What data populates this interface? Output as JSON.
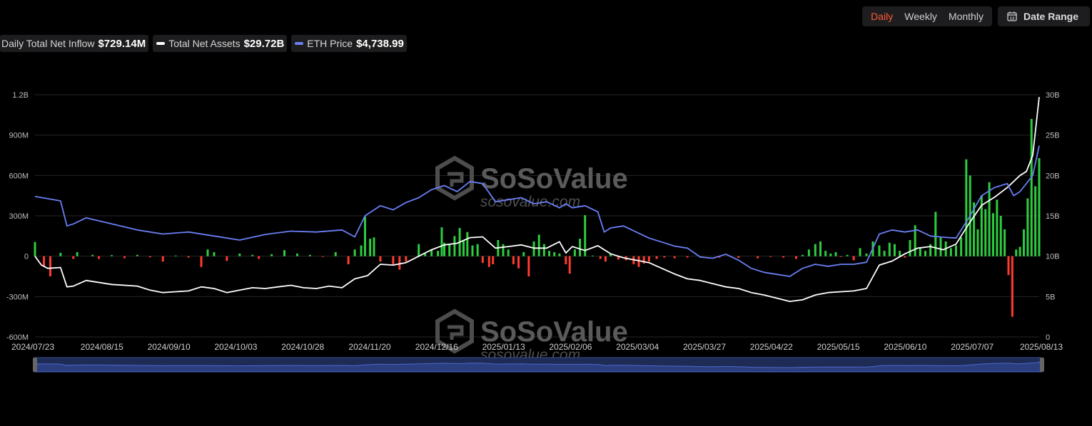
{
  "toolbar": {
    "periods": [
      {
        "label": "Daily",
        "active": true
      },
      {
        "label": "Weekly",
        "active": false
      },
      {
        "label": "Monthly",
        "active": false
      }
    ],
    "date_range_label": "Date Range",
    "date_range_icon": "calendar-icon"
  },
  "legend": [
    {
      "name": "Daily Total Net Inflow",
      "value": "$729.14M",
      "color": "#2ecc40"
    },
    {
      "name": "Total Net Assets",
      "value": "$29.72B",
      "color": "#ffffff"
    },
    {
      "name": "ETH Price",
      "value": "$4,738.99",
      "color": "#6a7ff5"
    }
  ],
  "watermark": {
    "brand": "SoSoValue",
    "site": "sosovalue.com"
  },
  "colors": {
    "inflow_positive": "#2ecc40",
    "inflow_negative": "#ff3b30",
    "assets_line": "#ffffff",
    "price_line": "#6a7ff5",
    "grid": "#262626"
  },
  "chart_data": {
    "type": "bar",
    "title": "",
    "xlabel": "",
    "ylabel": "",
    "left_axis": {
      "ticks": [
        "1.2B",
        "900M",
        "600M",
        "300M",
        "0",
        "-300M",
        "-600M"
      ],
      "range": [
        -600,
        1200
      ],
      "unit": "M"
    },
    "right_axis": {
      "ticks": [
        "30B",
        "25B",
        "20B",
        "15B",
        "10B",
        "5B",
        "0"
      ],
      "range": [
        0,
        30
      ],
      "unit": "B"
    },
    "x_tick_labels": [
      "2024/07/23",
      "2024/08/15",
      "2024/09/10",
      "2024/10/03",
      "2024/10/28",
      "2024/11/20",
      "2024/12/16",
      "2025/01/13",
      "2025/02/06",
      "2025/03/04",
      "2025/03/27",
      "2025/04/22",
      "2025/05/15",
      "2025/06/10",
      "2025/07/07",
      "2025/08/13"
    ],
    "grid": true,
    "legend_position": "top-left",
    "series": [
      {
        "name": "Daily Total Net Inflow",
        "type": "bar",
        "axis": "left",
        "unit": "M",
        "points": [
          [
            0,
            106
          ],
          [
            7,
            -75
          ],
          [
            12,
            -150
          ],
          [
            20,
            25
          ],
          [
            30,
            -20
          ],
          [
            33,
            30
          ],
          [
            45,
            10
          ],
          [
            50,
            -20
          ],
          [
            60,
            8
          ],
          [
            70,
            -15
          ],
          [
            80,
            10
          ],
          [
            90,
            -8
          ],
          [
            100,
            -40
          ],
          [
            110,
            5
          ],
          [
            120,
            -10
          ],
          [
            130,
            -80
          ],
          [
            135,
            50
          ],
          [
            140,
            30
          ],
          [
            150,
            -35
          ],
          [
            160,
            20
          ],
          [
            170,
            10
          ],
          [
            175,
            -20
          ],
          [
            185,
            15
          ],
          [
            195,
            45
          ],
          [
            205,
            20
          ],
          [
            215,
            10
          ],
          [
            225,
            -5
          ],
          [
            235,
            30
          ],
          [
            245,
            -60
          ],
          [
            250,
            50
          ],
          [
            255,
            80
          ],
          [
            258,
            295
          ],
          [
            262,
            130
          ],
          [
            265,
            140
          ],
          [
            270,
            -40
          ],
          [
            280,
            -60
          ],
          [
            285,
            -100
          ],
          [
            290,
            -40
          ],
          [
            300,
            90
          ],
          [
            305,
            20
          ],
          [
            310,
            50
          ],
          [
            315,
            40
          ],
          [
            318,
            215
          ],
          [
            320,
            100
          ],
          [
            324,
            90
          ],
          [
            328,
            150
          ],
          [
            332,
            210
          ],
          [
            335,
            120
          ],
          [
            338,
            180
          ],
          [
            342,
            80
          ],
          [
            346,
            90
          ],
          [
            350,
            -50
          ],
          [
            355,
            -80
          ],
          [
            358,
            -60
          ],
          [
            362,
            120
          ],
          [
            366,
            90
          ],
          [
            370,
            50
          ],
          [
            374,
            -60
          ],
          [
            378,
            -90
          ],
          [
            382,
            30
          ],
          [
            386,
            -150
          ],
          [
            390,
            110
          ],
          [
            394,
            160
          ],
          [
            398,
            90
          ],
          [
            402,
            40
          ],
          [
            406,
            30
          ],
          [
            410,
            20
          ],
          [
            415,
            -60
          ],
          [
            418,
            -130
          ],
          [
            422,
            50
          ],
          [
            426,
            130
          ],
          [
            430,
            305
          ],
          [
            436,
            5
          ],
          [
            442,
            -20
          ],
          [
            446,
            -40
          ],
          [
            450,
            20
          ],
          [
            456,
            -25
          ],
          [
            462,
            -30
          ],
          [
            468,
            -60
          ],
          [
            472,
            -80
          ],
          [
            476,
            -55
          ],
          [
            480,
            -40
          ],
          [
            486,
            -20
          ],
          [
            492,
            -10
          ],
          [
            500,
            -15
          ],
          [
            510,
            -10
          ],
          [
            520,
            -8
          ],
          [
            535,
            -10
          ],
          [
            550,
            -12
          ],
          [
            565,
            -15
          ],
          [
            575,
            -5
          ],
          [
            585,
            -10
          ],
          [
            595,
            -20
          ],
          [
            600,
            10
          ],
          [
            605,
            50
          ],
          [
            610,
            90
          ],
          [
            614,
            110
          ],
          [
            618,
            40
          ],
          [
            622,
            20
          ],
          [
            626,
            30
          ],
          [
            630,
            -5
          ],
          [
            635,
            10
          ],
          [
            640,
            -30
          ],
          [
            645,
            60
          ],
          [
            650,
            20
          ],
          [
            655,
            110
          ],
          [
            660,
            80
          ],
          [
            664,
            40
          ],
          [
            668,
            100
          ],
          [
            672,
            90
          ],
          [
            676,
            40
          ],
          [
            680,
            -10
          ],
          [
            684,
            120
          ],
          [
            688,
            230
          ],
          [
            692,
            60
          ],
          [
            696,
            40
          ],
          [
            700,
            90
          ],
          [
            704,
            330
          ],
          [
            708,
            140
          ],
          [
            712,
            110
          ],
          [
            716,
            60
          ],
          [
            720,
            80
          ],
          [
            724,
            140
          ],
          [
            728,
            720
          ],
          [
            731,
            600
          ],
          [
            734,
            400
          ],
          [
            737,
            200
          ],
          [
            740,
            450
          ],
          [
            743,
            350
          ],
          [
            746,
            550
          ],
          [
            749,
            320
          ],
          [
            752,
            420
          ],
          [
            755,
            300
          ],
          [
            758,
            200
          ],
          [
            761,
            -140
          ],
          [
            764,
            -450
          ],
          [
            767,
            50
          ],
          [
            770,
            70
          ],
          [
            773,
            200
          ],
          [
            776,
            430
          ],
          [
            779,
            1020
          ],
          [
            782,
            520
          ],
          [
            785,
            729
          ]
        ]
      },
      {
        "name": "Total Net Assets",
        "type": "line",
        "axis": "right",
        "unit": "B",
        "points": [
          [
            0,
            10
          ],
          [
            5,
            8.9
          ],
          [
            10,
            8.5
          ],
          [
            20,
            8.6
          ],
          [
            25,
            6.2
          ],
          [
            30,
            6.3
          ],
          [
            40,
            7
          ],
          [
            60,
            6.5
          ],
          [
            80,
            6.3
          ],
          [
            90,
            5.8
          ],
          [
            100,
            5.5
          ],
          [
            110,
            5.6
          ],
          [
            120,
            5.7
          ],
          [
            130,
            6.2
          ],
          [
            140,
            6
          ],
          [
            150,
            5.5
          ],
          [
            160,
            5.8
          ],
          [
            170,
            6.1
          ],
          [
            180,
            6.0
          ],
          [
            190,
            6.2
          ],
          [
            200,
            6.4
          ],
          [
            210,
            6.1
          ],
          [
            220,
            6.0
          ],
          [
            230,
            6.3
          ],
          [
            240,
            6.1
          ],
          [
            250,
            7.2
          ],
          [
            260,
            7.6
          ],
          [
            270,
            9.0
          ],
          [
            280,
            8.9
          ],
          [
            290,
            9.2
          ],
          [
            300,
            10.0
          ],
          [
            310,
            10.8
          ],
          [
            320,
            11.4
          ],
          [
            330,
            11.6
          ],
          [
            340,
            12.3
          ],
          [
            350,
            12.4
          ],
          [
            360,
            11.0
          ],
          [
            370,
            11.2
          ],
          [
            380,
            11.4
          ],
          [
            390,
            11.0
          ],
          [
            400,
            11.0
          ],
          [
            410,
            11.8
          ],
          [
            415,
            10.4
          ],
          [
            420,
            11.2
          ],
          [
            430,
            10.7
          ],
          [
            440,
            11.3
          ],
          [
            450,
            10.3
          ],
          [
            460,
            9.8
          ],
          [
            470,
            9.5
          ],
          [
            480,
            9.2
          ],
          [
            490,
            8.5
          ],
          [
            500,
            7.8
          ],
          [
            510,
            7.2
          ],
          [
            520,
            7.0
          ],
          [
            530,
            6.6
          ],
          [
            540,
            6.2
          ],
          [
            550,
            6.0
          ],
          [
            560,
            5.5
          ],
          [
            570,
            5.2
          ],
          [
            580,
            4.8
          ],
          [
            590,
            4.4
          ],
          [
            600,
            4.6
          ],
          [
            610,
            5.2
          ],
          [
            620,
            5.5
          ],
          [
            630,
            5.6
          ],
          [
            640,
            5.7
          ],
          [
            650,
            6.0
          ],
          [
            660,
            8.9
          ],
          [
            670,
            9.4
          ],
          [
            680,
            10.3
          ],
          [
            690,
            11.0
          ],
          [
            700,
            11.2
          ],
          [
            710,
            10.8
          ],
          [
            720,
            11.5
          ],
          [
            730,
            14.0
          ],
          [
            740,
            16.3
          ],
          [
            750,
            17.3
          ],
          [
            760,
            18.5
          ],
          [
            770,
            20.0
          ],
          [
            775,
            20.5
          ],
          [
            780,
            22.5
          ],
          [
            785,
            29.72
          ]
        ]
      },
      {
        "name": "ETH Price",
        "type": "line",
        "axis": "right",
        "unit": "USD",
        "points": [
          [
            0,
            3480
          ],
          [
            20,
            3370
          ],
          [
            25,
            2750
          ],
          [
            30,
            2800
          ],
          [
            40,
            2950
          ],
          [
            60,
            2800
          ],
          [
            80,
            2650
          ],
          [
            100,
            2550
          ],
          [
            120,
            2600
          ],
          [
            140,
            2500
          ],
          [
            160,
            2400
          ],
          [
            180,
            2540
          ],
          [
            200,
            2620
          ],
          [
            220,
            2600
          ],
          [
            240,
            2650
          ],
          [
            250,
            2480
          ],
          [
            258,
            3000
          ],
          [
            270,
            3250
          ],
          [
            280,
            3150
          ],
          [
            290,
            3330
          ],
          [
            300,
            3450
          ],
          [
            310,
            3650
          ],
          [
            320,
            3750
          ],
          [
            330,
            3600
          ],
          [
            340,
            3850
          ],
          [
            350,
            3800
          ],
          [
            360,
            3350
          ],
          [
            370,
            3400
          ],
          [
            380,
            3450
          ],
          [
            390,
            3300
          ],
          [
            400,
            3350
          ],
          [
            410,
            3200
          ],
          [
            415,
            3300
          ],
          [
            420,
            3200
          ],
          [
            430,
            3250
          ],
          [
            440,
            3100
          ],
          [
            445,
            2600
          ],
          [
            450,
            2700
          ],
          [
            460,
            2750
          ],
          [
            470,
            2600
          ],
          [
            480,
            2450
          ],
          [
            490,
            2350
          ],
          [
            500,
            2250
          ],
          [
            510,
            2200
          ],
          [
            520,
            1980
          ],
          [
            530,
            1950
          ],
          [
            540,
            2050
          ],
          [
            550,
            1900
          ],
          [
            560,
            1700
          ],
          [
            570,
            1600
          ],
          [
            580,
            1550
          ],
          [
            590,
            1500
          ],
          [
            600,
            1700
          ],
          [
            610,
            1800
          ],
          [
            620,
            1750
          ],
          [
            630,
            1800
          ],
          [
            640,
            1800
          ],
          [
            650,
            1850
          ],
          [
            660,
            2550
          ],
          [
            670,
            2650
          ],
          [
            680,
            2600
          ],
          [
            690,
            2650
          ],
          [
            700,
            2500
          ],
          [
            710,
            2470
          ],
          [
            720,
            2450
          ],
          [
            730,
            2950
          ],
          [
            740,
            3500
          ],
          [
            750,
            3700
          ],
          [
            760,
            3800
          ],
          [
            765,
            3500
          ],
          [
            770,
            3600
          ],
          [
            780,
            4000
          ],
          [
            785,
            4738.99
          ]
        ]
      }
    ]
  }
}
